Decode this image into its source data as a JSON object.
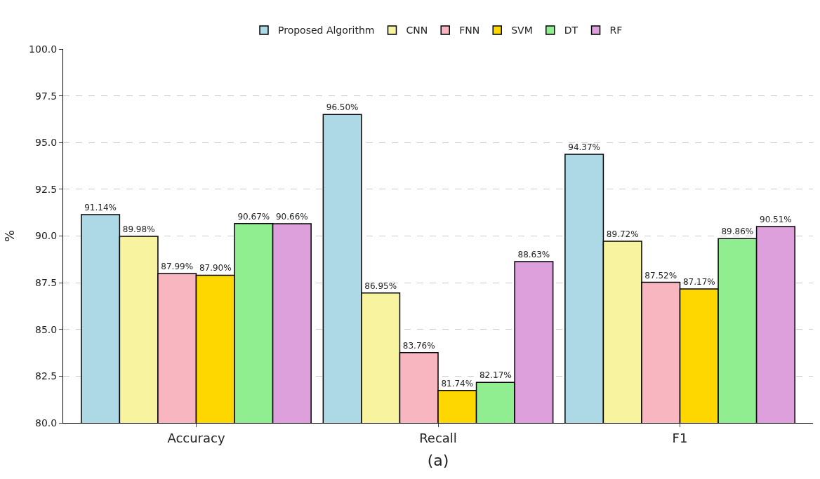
{
  "chart_data": {
    "type": "bar",
    "xlabel": "(a)",
    "ylabel": "%",
    "categories": [
      "Accuracy",
      "Recall",
      "F1"
    ],
    "series": [
      {
        "name": "Proposed Algorithm",
        "color": "#add8e6",
        "values": [
          91.14,
          96.5,
          94.37
        ],
        "value_labels": [
          "91.14%",
          "96.50%",
          "94.37%"
        ]
      },
      {
        "name": "CNN",
        "color": "#f7f39e",
        "values": [
          89.98,
          86.95,
          89.72
        ],
        "value_labels": [
          "89.98%",
          "86.95%",
          "89.72%"
        ]
      },
      {
        "name": "FNN",
        "color": "#f7b6c0",
        "values": [
          87.99,
          83.76,
          87.52
        ],
        "value_labels": [
          "87.99%",
          "83.76%",
          "87.52%"
        ]
      },
      {
        "name": "SVM",
        "color": "#ffd700",
        "values": [
          87.9,
          81.74,
          87.17
        ],
        "value_labels": [
          "87.90%",
          "81.74%",
          "87.17%"
        ]
      },
      {
        "name": "DT",
        "color": "#90ee90",
        "values": [
          90.67,
          82.17,
          89.86
        ],
        "value_labels": [
          "90.67%",
          "82.17%",
          "89.86%"
        ]
      },
      {
        "name": "RF",
        "color": "#dda0dd",
        "values": [
          90.66,
          88.63,
          90.51
        ],
        "value_labels": [
          "90.66%",
          "88.63%",
          "90.51%"
        ]
      }
    ],
    "ylim": [
      80,
      100
    ],
    "yticks": [
      {
        "value": 80,
        "label": "80.0"
      },
      {
        "value": 82.5,
        "label": "82.5"
      },
      {
        "value": 85,
        "label": "85.0"
      },
      {
        "value": 87.5,
        "label": "87.5"
      },
      {
        "value": 90,
        "label": "90.0"
      },
      {
        "value": 92.5,
        "label": "92.5"
      },
      {
        "value": 95,
        "label": "95.0"
      },
      {
        "value": 97.5,
        "label": "97.5"
      },
      {
        "value": 100,
        "label": "100.0"
      }
    ],
    "grid": "y",
    "legend": "top"
  }
}
